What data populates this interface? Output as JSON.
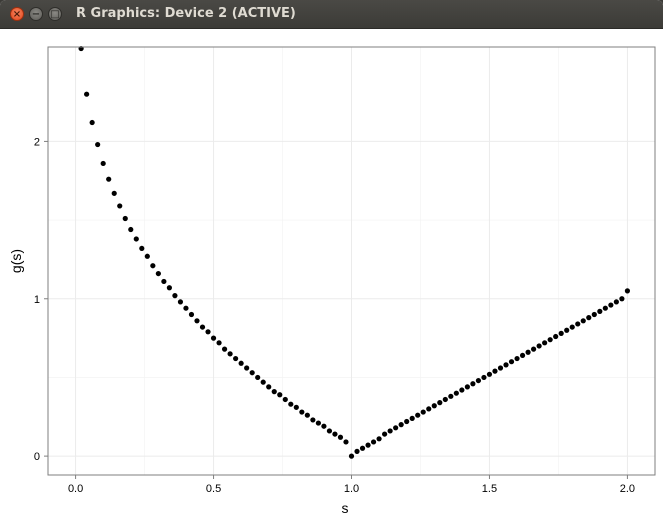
{
  "window": {
    "title": "R Graphics: Device 2 (ACTIVE)",
    "buttons": {
      "close_glyph": "×",
      "minimize_glyph": "−",
      "maximize_glyph": "□"
    }
  },
  "chart_data": {
    "type": "scatter",
    "title": "",
    "xlabel": "s",
    "ylabel": "g(s)",
    "xlim": [
      -0.1,
      2.1
    ],
    "ylim": [
      -0.12,
      2.6
    ],
    "xticks": [
      0.0,
      0.5,
      1.0,
      1.5,
      2.0
    ],
    "xtick_labels": [
      "0.0",
      "0.5",
      "1.0",
      "1.5",
      "2.0"
    ],
    "yticks": [
      0,
      1,
      2
    ],
    "ytick_labels": [
      "0",
      "1",
      "2"
    ],
    "grid": true,
    "theme": "bw",
    "point_color": "#000000",
    "series": [
      {
        "x": [
          0.02,
          0.04,
          0.06,
          0.08,
          0.1,
          0.12,
          0.14,
          0.16,
          0.18,
          0.2,
          0.22,
          0.24,
          0.26,
          0.28,
          0.3,
          0.32,
          0.34,
          0.36,
          0.38,
          0.4,
          0.42,
          0.44,
          0.46,
          0.48,
          0.5,
          0.52,
          0.54,
          0.56,
          0.58,
          0.6,
          0.62,
          0.64,
          0.66,
          0.68,
          0.7,
          0.72,
          0.74,
          0.76,
          0.78,
          0.8,
          0.82,
          0.84,
          0.86,
          0.88,
          0.9,
          0.92,
          0.94,
          0.96,
          0.98,
          1.0,
          1.02,
          1.04,
          1.06,
          1.08,
          1.1,
          1.12,
          1.14,
          1.16,
          1.18,
          1.2,
          1.22,
          1.24,
          1.26,
          1.28,
          1.3,
          1.32,
          1.34,
          1.36,
          1.38,
          1.4,
          1.42,
          1.44,
          1.46,
          1.48,
          1.5,
          1.52,
          1.54,
          1.56,
          1.58,
          1.6,
          1.62,
          1.64,
          1.66,
          1.68,
          1.7,
          1.72,
          1.74,
          1.76,
          1.78,
          1.8,
          1.82,
          1.84,
          1.86,
          1.88,
          1.9,
          1.92,
          1.94,
          1.96,
          1.98,
          2.0
        ],
        "y": [
          2.59,
          2.3,
          2.12,
          1.98,
          1.86,
          1.76,
          1.67,
          1.59,
          1.51,
          1.44,
          1.38,
          1.32,
          1.27,
          1.21,
          1.16,
          1.11,
          1.07,
          1.02,
          0.98,
          0.94,
          0.9,
          0.86,
          0.82,
          0.79,
          0.75,
          0.72,
          0.68,
          0.65,
          0.62,
          0.59,
          0.56,
          0.53,
          0.5,
          0.47,
          0.44,
          0.41,
          0.39,
          0.36,
          0.33,
          0.31,
          0.28,
          0.26,
          0.23,
          0.21,
          0.19,
          0.16,
          0.14,
          0.12,
          0.09,
          0.0,
          0.03,
          0.05,
          0.07,
          0.09,
          0.11,
          0.14,
          0.16,
          0.18,
          0.2,
          0.22,
          0.24,
          0.26,
          0.28,
          0.3,
          0.32,
          0.34,
          0.36,
          0.38,
          0.4,
          0.42,
          0.44,
          0.46,
          0.48,
          0.5,
          0.52,
          0.54,
          0.56,
          0.58,
          0.6,
          0.62,
          0.64,
          0.66,
          0.68,
          0.7,
          0.72,
          0.74,
          0.76,
          0.78,
          0.8,
          0.82,
          0.84,
          0.86,
          0.88,
          0.9,
          0.92,
          0.94,
          0.96,
          0.98,
          1.0,
          1.05
        ]
      }
    ]
  }
}
